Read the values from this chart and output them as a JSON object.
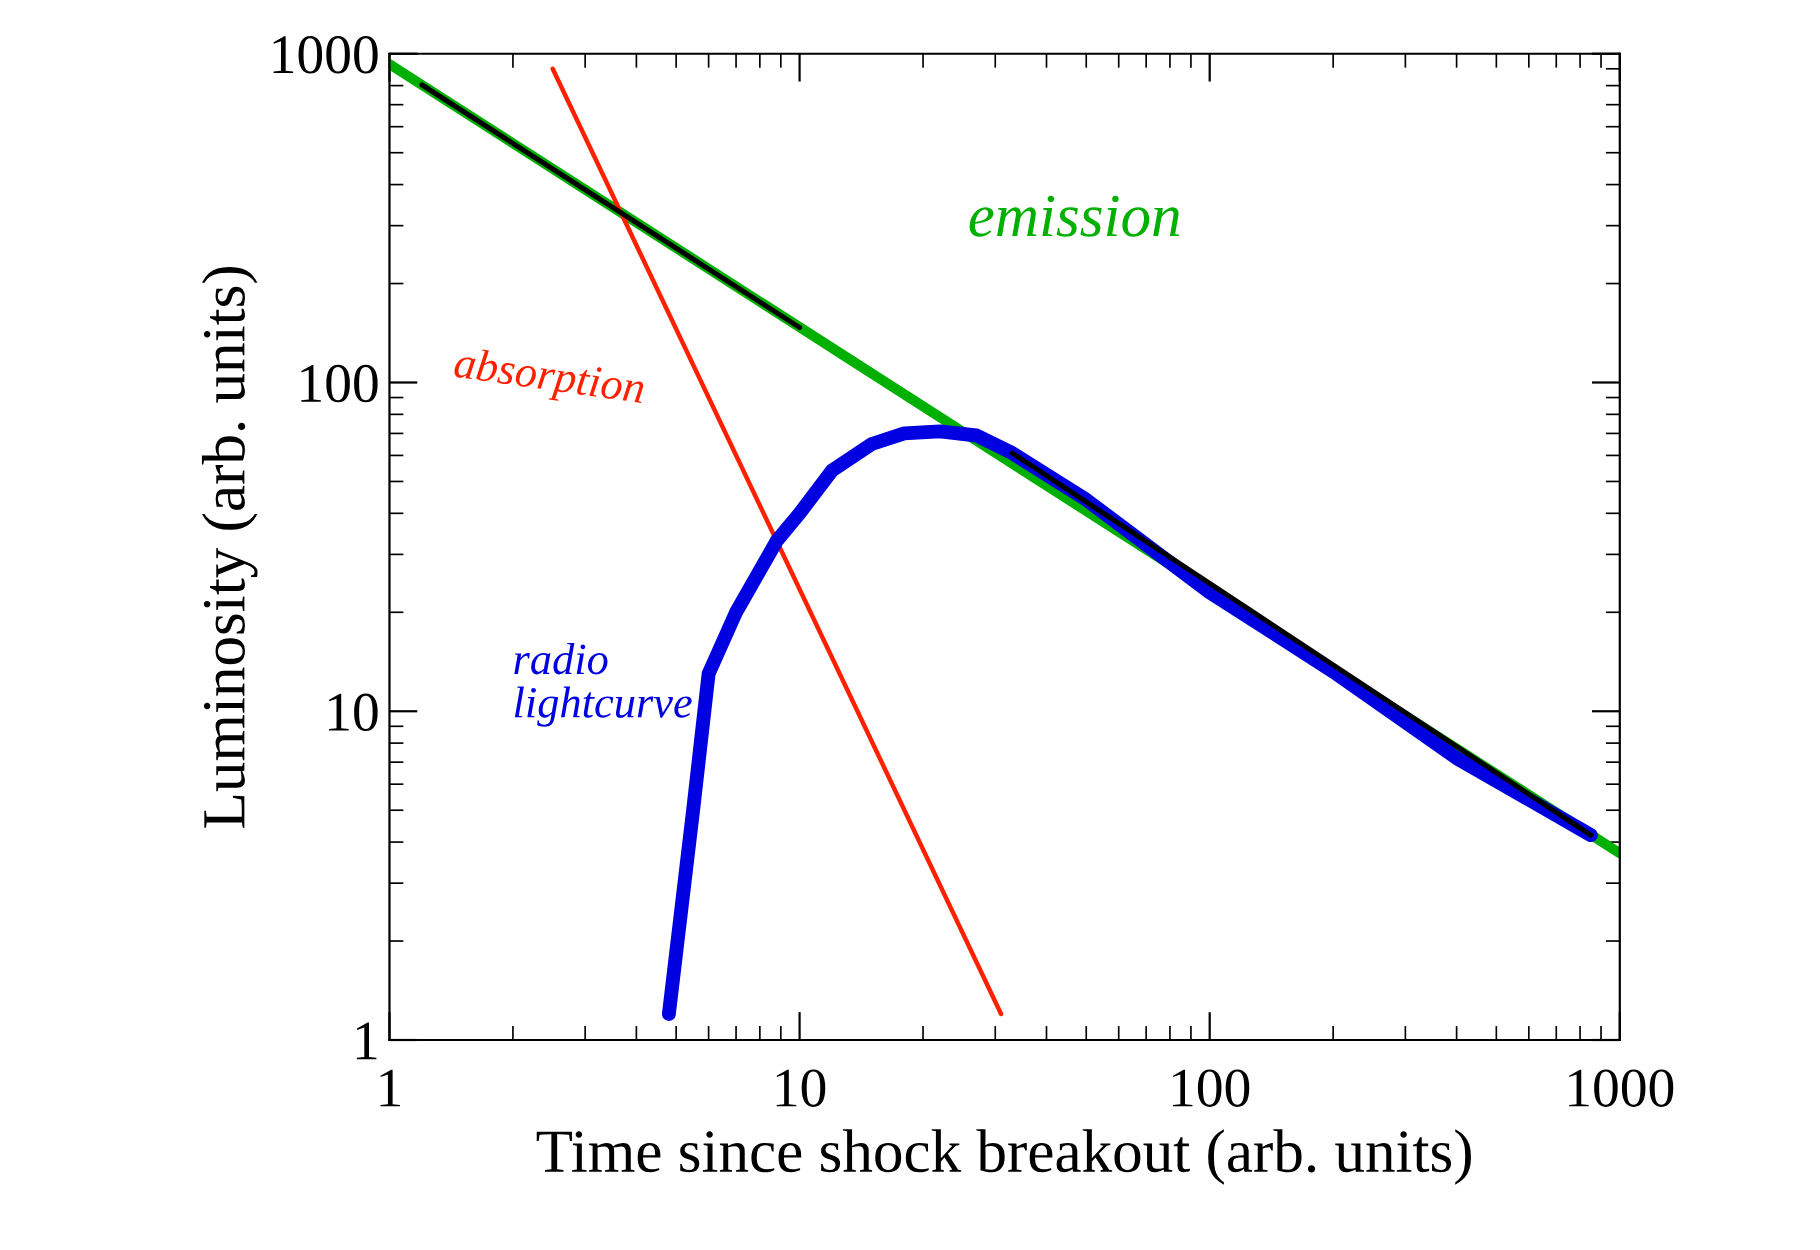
{
  "chart_data": {
    "type": "line",
    "xlabel": "Time since shock breakout (arb. units)",
    "ylabel": "Luminosity (arb. units)",
    "log": "xy",
    "xlim": [
      1,
      1000
    ],
    "ylim": [
      1,
      1000
    ],
    "xticks": [
      1,
      10,
      100,
      1000
    ],
    "yticks": [
      1,
      10,
      100,
      1000
    ],
    "grid": false,
    "legend": false,
    "marker": "none",
    "line_style": "solid",
    "series": [
      {
        "name": "emission",
        "color": "#00b000",
        "x": [
          1,
          1000
        ],
        "values": [
          930,
          3.7
        ]
      },
      {
        "name": "absorption",
        "color": "#ff2000",
        "x": [
          2.5,
          31
        ],
        "values": [
          900,
          1.2
        ]
      },
      {
        "name": "radio lightcurve",
        "color": "#0000e0",
        "x": [
          4.8,
          5.5,
          6,
          7,
          8.8,
          10,
          12,
          15,
          18,
          22,
          27,
          33,
          50,
          100,
          200,
          400,
          850
        ],
        "values": [
          1.2,
          5,
          13,
          20,
          33,
          40,
          54,
          65,
          70,
          71,
          69,
          61,
          44,
          23,
          13.2,
          7.2,
          4.2
        ]
      },
      {
        "color": "#000000",
        "x": [
          1.2,
          10,
          12,
          33,
          850
        ],
        "values": [
          804,
          147,
          null,
          61,
          4.2
        ]
      }
    ]
  }
}
